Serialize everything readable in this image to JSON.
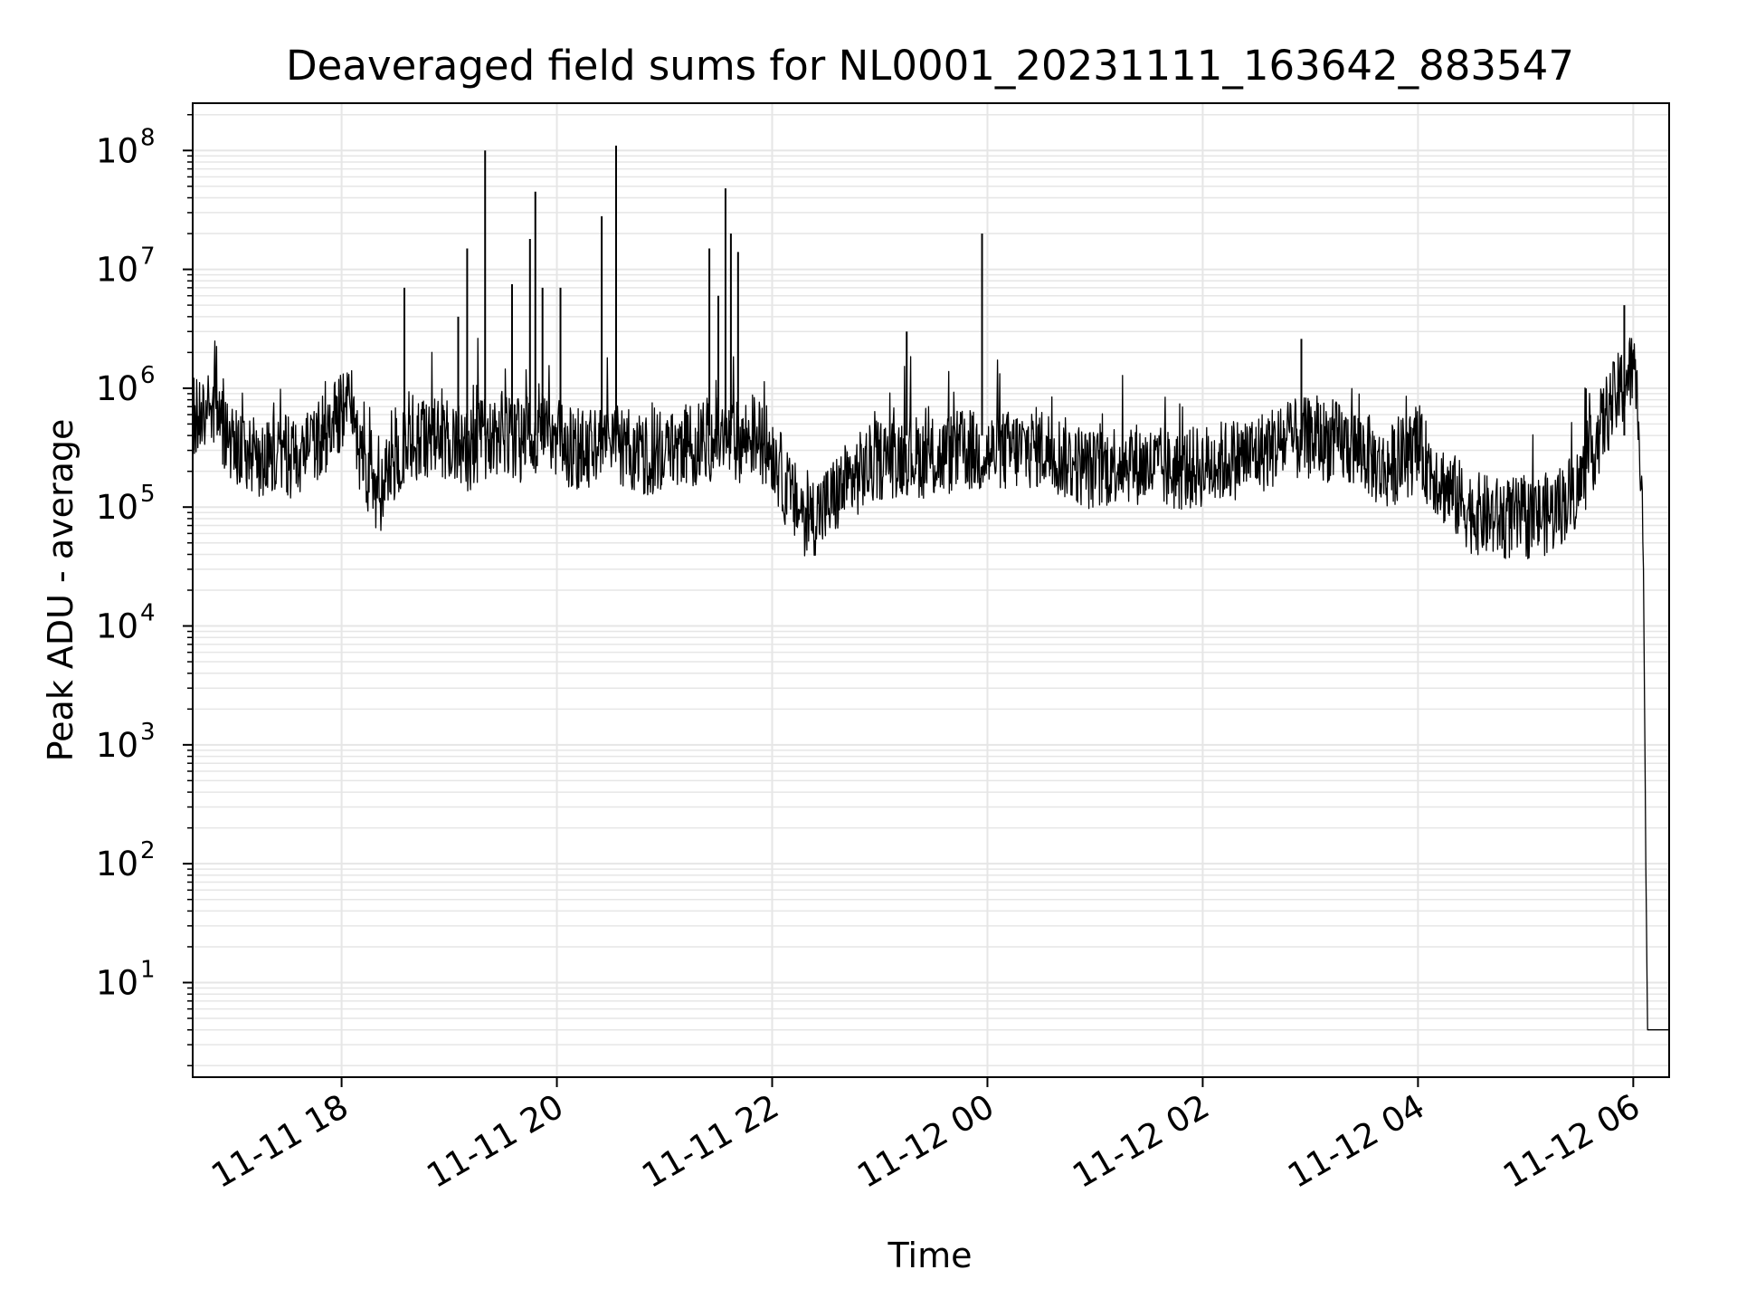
{
  "chart_data": {
    "type": "line",
    "title": "Deaveraged field sums for NL0001_20231111_163642_883547",
    "xlabel": "Time",
    "ylabel": "Peak ADU - average",
    "yscale": "log",
    "grid": true,
    "line_color": "#000000",
    "grid_color": "#e6e6e6",
    "xlim": [
      "2023-11-11 16:37",
      "2023-11-12 06:20"
    ],
    "ylim": [
      1.6,
      250000000
    ],
    "x_ticks": [
      {
        "value": "2023-11-11 18:00",
        "label": "11-11 18"
      },
      {
        "value": "2023-11-11 20:00",
        "label": "11-11 20"
      },
      {
        "value": "2023-11-11 22:00",
        "label": "11-11 22"
      },
      {
        "value": "2023-11-12 00:00",
        "label": "11-12 00"
      },
      {
        "value": "2023-11-12 02:00",
        "label": "11-12 02"
      },
      {
        "value": "2023-11-12 04:00",
        "label": "11-12 04"
      },
      {
        "value": "2023-11-12 06:00",
        "label": "11-12 06"
      }
    ],
    "y_ticks": [
      {
        "value": 10,
        "base": "10",
        "exp": "1"
      },
      {
        "value": 100,
        "base": "10",
        "exp": "2"
      },
      {
        "value": 1000,
        "base": "10",
        "exp": "3"
      },
      {
        "value": 10000,
        "base": "10",
        "exp": "4"
      },
      {
        "value": 100000,
        "base": "10",
        "exp": "5"
      },
      {
        "value": 1000000,
        "base": "10",
        "exp": "6"
      },
      {
        "value": 10000000,
        "base": "10",
        "exp": "7"
      },
      {
        "value": 100000000,
        "base": "10",
        "exp": "8"
      }
    ],
    "series": [
      {
        "points": [
          [
            "2023-11-11 16:37",
            600000
          ],
          [
            "2023-11-11 16:45",
            650000
          ],
          [
            "2023-11-11 16:55",
            420000
          ],
          [
            "2023-11-11 17:05",
            300000
          ],
          [
            "2023-11-11 17:15",
            250000
          ],
          [
            "2023-11-11 17:25",
            280000
          ],
          [
            "2023-11-11 17:35",
            260000
          ],
          [
            "2023-11-11 17:45",
            320000
          ],
          [
            "2023-11-11 17:55",
            500000
          ],
          [
            "2023-11-11 18:05",
            700000
          ],
          [
            "2023-11-11 18:10",
            300000
          ],
          [
            "2023-11-11 18:20",
            120000
          ],
          [
            "2023-11-11 18:30",
            250000
          ],
          [
            "2023-11-11 18:40",
            350000
          ],
          [
            "2023-11-11 18:50",
            400000
          ],
          [
            "2023-11-11 19:00",
            350000
          ],
          [
            "2023-11-11 19:10",
            300000
          ],
          [
            "2023-11-11 19:20",
            380000
          ],
          [
            "2023-11-11 19:30",
            400000
          ],
          [
            "2023-11-11 19:40",
            360000
          ],
          [
            "2023-11-11 19:50",
            420000
          ],
          [
            "2023-11-11 20:00",
            380000
          ],
          [
            "2023-11-11 20:10",
            300000
          ],
          [
            "2023-11-11 20:20",
            320000
          ],
          [
            "2023-11-11 20:30",
            350000
          ],
          [
            "2023-11-11 20:40",
            300000
          ],
          [
            "2023-11-11 20:50",
            280000
          ],
          [
            "2023-11-11 21:00",
            300000
          ],
          [
            "2023-11-11 21:10",
            320000
          ],
          [
            "2023-11-11 21:20",
            350000
          ],
          [
            "2023-11-11 21:30",
            380000
          ],
          [
            "2023-11-11 21:40",
            350000
          ],
          [
            "2023-11-11 21:50",
            400000
          ],
          [
            "2023-11-11 22:00",
            300000
          ],
          [
            "2023-11-11 22:10",
            120000
          ],
          [
            "2023-11-11 22:20",
            80000
          ],
          [
            "2023-11-11 22:30",
            100000
          ],
          [
            "2023-11-11 22:40",
            150000
          ],
          [
            "2023-11-11 22:50",
            200000
          ],
          [
            "2023-11-11 23:00",
            250000
          ],
          [
            "2023-11-11 23:15",
            280000
          ],
          [
            "2023-11-11 23:30",
            250000
          ],
          [
            "2023-11-11 23:45",
            300000
          ],
          [
            "2023-11-12 00:00",
            280000
          ],
          [
            "2023-11-12 00:15",
            300000
          ],
          [
            "2023-11-12 00:30",
            320000
          ],
          [
            "2023-11-12 00:45",
            250000
          ],
          [
            "2023-11-12 01:00",
            200000
          ],
          [
            "2023-11-12 01:15",
            250000
          ],
          [
            "2023-11-12 01:30",
            220000
          ],
          [
            "2023-11-12 01:45",
            200000
          ],
          [
            "2023-11-12 02:00",
            220000
          ],
          [
            "2023-11-12 02:15",
            250000
          ],
          [
            "2023-11-12 02:30",
            280000
          ],
          [
            "2023-11-12 02:45",
            350000
          ],
          [
            "2023-11-12 03:00",
            380000
          ],
          [
            "2023-11-12 03:15",
            350000
          ],
          [
            "2023-11-12 03:30",
            300000
          ],
          [
            "2023-11-12 03:40",
            200000
          ],
          [
            "2023-11-12 03:50",
            250000
          ],
          [
            "2023-11-12 04:00",
            300000
          ],
          [
            "2023-11-12 04:15",
            150000
          ],
          [
            "2023-11-12 04:30",
            90000
          ],
          [
            "2023-11-12 04:45",
            80000
          ],
          [
            "2023-11-12 05:00",
            80000
          ],
          [
            "2023-11-12 05:15",
            90000
          ],
          [
            "2023-11-12 05:30",
            150000
          ],
          [
            "2023-11-12 05:45",
            600000
          ],
          [
            "2023-11-12 05:55",
            1100000
          ],
          [
            "2023-11-12 06:00",
            1500000
          ],
          [
            "2023-11-12 06:03",
            600000
          ],
          [
            "2023-11-12 06:05",
            150000
          ],
          [
            "2023-11-12 06:06",
            8000
          ],
          [
            "2023-11-12 06:07",
            100
          ],
          [
            "2023-11-12 06:08",
            4
          ],
          [
            "2023-11-12 06:20",
            4
          ]
        ]
      }
    ],
    "spikes": [
      [
        "2023-11-11 18:35",
        7000000
      ],
      [
        "2023-11-11 19:05",
        4000000
      ],
      [
        "2023-11-11 19:10",
        15000000
      ],
      [
        "2023-11-11 19:20",
        100000000
      ],
      [
        "2023-11-11 19:35",
        7500000
      ],
      [
        "2023-11-11 19:45",
        18000000
      ],
      [
        "2023-11-11 19:48",
        45000000
      ],
      [
        "2023-11-11 19:52",
        7000000
      ],
      [
        "2023-11-11 20:02",
        7000000
      ],
      [
        "2023-11-11 20:25",
        28000000
      ],
      [
        "2023-11-11 20:33",
        110000000
      ],
      [
        "2023-11-11 21:25",
        15000000
      ],
      [
        "2023-11-11 21:30",
        6000000
      ],
      [
        "2023-11-11 21:34",
        48000000
      ],
      [
        "2023-11-11 21:37",
        20000000
      ],
      [
        "2023-11-11 21:41",
        14000000
      ],
      [
        "2023-11-11 23:15",
        3000000
      ],
      [
        "2023-11-11 23:57",
        20000000
      ],
      [
        "2023-11-12 02:55",
        2600000
      ],
      [
        "2023-11-12 05:55",
        5000000
      ]
    ]
  }
}
